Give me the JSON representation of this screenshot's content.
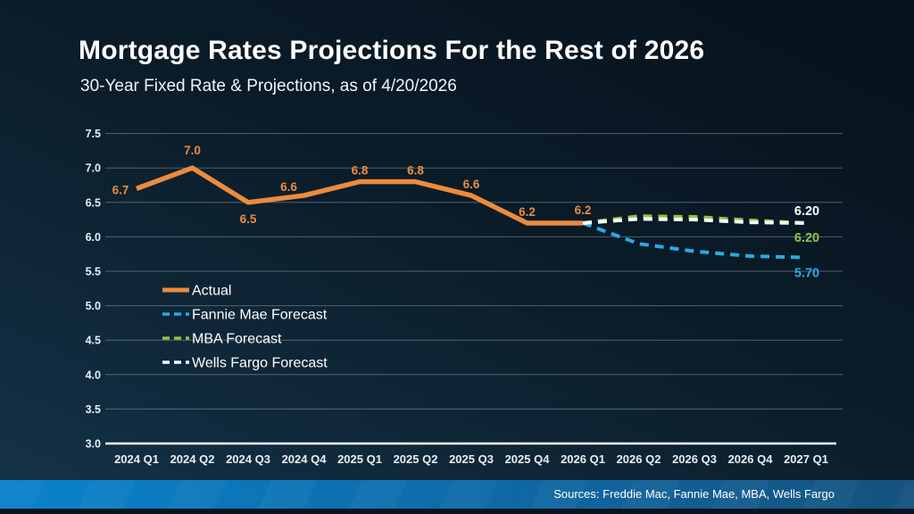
{
  "header": {
    "title": "Mortgage Rates Projections For the Rest of 2026",
    "subtitle": "30-Year Fixed Rate & Projections, as of 4/20/2026"
  },
  "footer": {
    "sources": "Sources: Freddie Mac, Fannie Mae, MBA, Wells Fargo"
  },
  "colors": {
    "actual": "#EC8B3D",
    "fannie": "#29ABE2",
    "mba": "#8CC63F",
    "wells": "#FFFFFF",
    "grid": "rgba(175,195,208,0.42)",
    "axis": "#FFFFFF",
    "tick_text": "#E9EFF3"
  },
  "chart_data": {
    "type": "line",
    "title": "Mortgage Rates Projections For the Rest of 2026",
    "subtitle": "30-Year Fixed Rate & Projections, as of 4/20/2026",
    "categories": [
      "2024 Q1",
      "2024 Q2",
      "2024 Q3",
      "2024 Q4",
      "2025 Q1",
      "2025 Q2",
      "2025 Q3",
      "2025 Q4",
      "2026 Q1",
      "2026 Q2",
      "2026 Q3",
      "2026 Q4",
      "2027 Q1"
    ],
    "ylim": [
      3.0,
      7.5
    ],
    "ytick_step": 0.5,
    "grid": true,
    "legend_position": "inside-left",
    "series": [
      {
        "name": "Actual",
        "style": "solid",
        "color_key": "actual",
        "x_start_index": 0,
        "values": [
          6.7,
          7.0,
          6.5,
          6.6,
          6.8,
          6.8,
          6.6,
          6.2,
          6.2
        ],
        "point_labels": [
          "6.7",
          "7.0",
          "6.5",
          "6.6",
          "6.8",
          "6.8",
          "6.6",
          "6.2",
          "6.2"
        ]
      },
      {
        "name": "Fannie Mae Forecast",
        "style": "dashed",
        "color_key": "fannie",
        "x_start_index": 8,
        "values": [
          6.2,
          5.9,
          5.79,
          5.72,
          5.7
        ],
        "end_label": "5.70"
      },
      {
        "name": "MBA Forecast",
        "style": "dashed",
        "color_key": "mba",
        "x_start_index": 8,
        "values": [
          6.2,
          6.3,
          6.29,
          6.24,
          6.2
        ],
        "end_label": "6.20"
      },
      {
        "name": "Wells Fargo Forecast",
        "style": "dashed",
        "color_key": "wells",
        "x_start_index": 8,
        "values": [
          6.2,
          6.26,
          6.25,
          6.21,
          6.2
        ],
        "end_label": "6.20"
      }
    ]
  }
}
